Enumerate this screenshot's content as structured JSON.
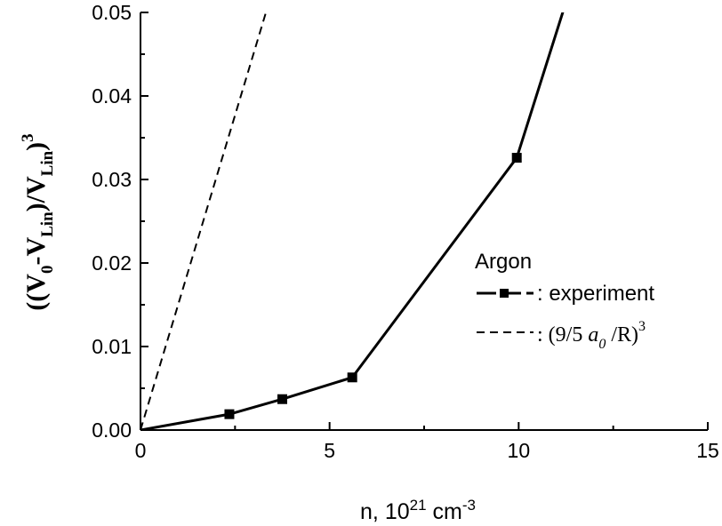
{
  "chart_data": {
    "type": "line",
    "xlabel": {
      "main": "n, 10",
      "sup1": "21",
      "mid": " cm",
      "sup2": "-3"
    },
    "ylabel": {
      "open": "((V",
      "sub0": "0",
      "minus": "-V",
      "subLin1": "Lin",
      "close1": ")/V",
      "subLin2": "Lin",
      "close2": ")",
      "sup3": "3"
    },
    "xlim": [
      0,
      15
    ],
    "ylim": [
      0,
      0.05
    ],
    "x_ticks": [
      "0",
      "5",
      "10",
      "15"
    ],
    "y_ticks": [
      "0.00",
      "0.01",
      "0.02",
      "0.03",
      "0.04",
      "0.05"
    ],
    "legend": {
      "title": "Argon",
      "placement": "right",
      "entries": [
        {
          "label": ": experiment"
        },
        {
          "label_prefix": ": (9/5 ",
          "label_var": "a",
          "label_sub": "0",
          "label_mid": " /R)",
          "label_sup": "3"
        }
      ]
    },
    "series": [
      {
        "style": "solid-square-markers",
        "color": "#000000",
        "x": [
          0.0,
          2.35,
          3.75,
          5.6,
          9.95,
          11.2
        ],
        "y": [
          0.0,
          0.0019,
          0.0037,
          0.0063,
          0.0326,
          0.0505
        ],
        "markers": [
          false,
          true,
          true,
          true,
          true,
          false
        ]
      },
      {
        "style": "dashed",
        "color": "#000000",
        "x": [
          0.0,
          3.35
        ],
        "y": [
          0.0,
          0.0505
        ]
      }
    ]
  }
}
